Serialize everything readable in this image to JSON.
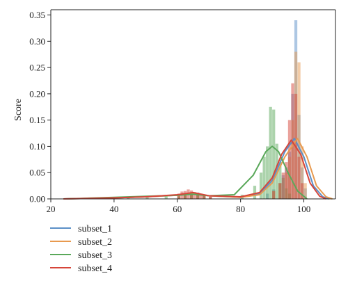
{
  "chart_data": {
    "type": "histogram with density curves",
    "title": "",
    "xlabel": "",
    "ylabel": "Score",
    "xlim": [
      20,
      110
    ],
    "ylim": [
      0,
      0.36
    ],
    "xticks": [
      20,
      40,
      60,
      80,
      100
    ],
    "yticks": [
      0.0,
      0.05,
      0.1,
      0.15,
      0.2,
      0.25,
      0.3,
      0.35
    ],
    "ytick_labels": [
      "0.00",
      "0.05",
      "0.10",
      "0.15",
      "0.20",
      "0.25",
      "0.30",
      "0.35"
    ],
    "grid": false,
    "legend_placement": "below-left",
    "bin_width": 1,
    "series": [
      {
        "name": "subset_1",
        "color": "#5b8fc7",
        "histogram": [
          [
            60,
            0.004
          ],
          [
            62,
            0.006
          ],
          [
            64,
            0.008
          ],
          [
            66,
            0.012
          ],
          [
            68,
            0.006
          ],
          [
            70,
            0.004
          ],
          [
            88,
            0.01
          ],
          [
            90,
            0.018
          ],
          [
            92,
            0.03
          ],
          [
            93,
            0.045
          ],
          [
            94,
            0.06
          ],
          [
            95,
            0.09
          ],
          [
            96,
            0.2
          ],
          [
            97,
            0.34
          ],
          [
            98,
            0.16
          ],
          [
            99,
            0.06
          ],
          [
            100,
            0.02
          ]
        ],
        "density": [
          [
            24,
            0.0
          ],
          [
            40,
            0.002
          ],
          [
            50,
            0.004
          ],
          [
            60,
            0.007
          ],
          [
            65,
            0.01
          ],
          [
            70,
            0.006
          ],
          [
            80,
            0.003
          ],
          [
            86,
            0.01
          ],
          [
            90,
            0.035
          ],
          [
            94,
            0.09
          ],
          [
            97,
            0.115
          ],
          [
            100,
            0.08
          ],
          [
            103,
            0.025
          ],
          [
            106,
            0.004
          ],
          [
            108,
            0.0
          ]
        ]
      },
      {
        "name": "subset_2",
        "color": "#e89a4f",
        "histogram": [
          [
            60,
            0.005
          ],
          [
            62,
            0.008
          ],
          [
            64,
            0.012
          ],
          [
            66,
            0.01
          ],
          [
            68,
            0.006
          ],
          [
            70,
            0.004
          ],
          [
            90,
            0.015
          ],
          [
            92,
            0.03
          ],
          [
            94,
            0.05
          ],
          [
            95,
            0.08
          ],
          [
            96,
            0.15
          ],
          [
            97,
            0.28
          ],
          [
            98,
            0.26
          ],
          [
            99,
            0.1
          ],
          [
            100,
            0.03
          ]
        ],
        "density": [
          [
            24,
            0.0
          ],
          [
            40,
            0.002
          ],
          [
            50,
            0.004
          ],
          [
            60,
            0.007
          ],
          [
            65,
            0.01
          ],
          [
            70,
            0.006
          ],
          [
            80,
            0.003
          ],
          [
            86,
            0.008
          ],
          [
            90,
            0.03
          ],
          [
            94,
            0.08
          ],
          [
            98,
            0.115
          ],
          [
            101,
            0.08
          ],
          [
            104,
            0.025
          ],
          [
            107,
            0.004
          ],
          [
            109,
            0.0
          ]
        ]
      },
      {
        "name": "subset_3",
        "color": "#5aa85a",
        "histogram": [
          [
            44,
            0.002
          ],
          [
            50,
            0.004
          ],
          [
            56,
            0.006
          ],
          [
            60,
            0.008
          ],
          [
            62,
            0.01
          ],
          [
            64,
            0.008
          ],
          [
            66,
            0.01
          ],
          [
            68,
            0.006
          ],
          [
            80,
            0.008
          ],
          [
            84,
            0.025
          ],
          [
            86,
            0.05
          ],
          [
            87,
            0.08
          ],
          [
            88,
            0.1
          ],
          [
            89,
            0.175
          ],
          [
            90,
            0.17
          ],
          [
            91,
            0.105
          ],
          [
            92,
            0.07
          ],
          [
            93,
            0.04
          ],
          [
            94,
            0.02
          ],
          [
            95,
            0.01
          ]
        ],
        "density": [
          [
            24,
            0.0
          ],
          [
            30,
            0.001
          ],
          [
            40,
            0.003
          ],
          [
            50,
            0.005
          ],
          [
            60,
            0.007
          ],
          [
            65,
            0.009
          ],
          [
            70,
            0.006
          ],
          [
            78,
            0.008
          ],
          [
            84,
            0.045
          ],
          [
            88,
            0.09
          ],
          [
            90,
            0.1
          ],
          [
            92,
            0.09
          ],
          [
            95,
            0.05
          ],
          [
            98,
            0.015
          ],
          [
            101,
            0.0
          ]
        ]
      },
      {
        "name": "subset_4",
        "color": "#d6453a",
        "histogram": [
          [
            60,
            0.01
          ],
          [
            61,
            0.014
          ],
          [
            62,
            0.015
          ],
          [
            63,
            0.018
          ],
          [
            64,
            0.016
          ],
          [
            65,
            0.013
          ],
          [
            66,
            0.012
          ],
          [
            67,
            0.01
          ],
          [
            68,
            0.008
          ],
          [
            70,
            0.005
          ],
          [
            90,
            0.015
          ],
          [
            92,
            0.03
          ],
          [
            93,
            0.05
          ],
          [
            94,
            0.07
          ],
          [
            95,
            0.15
          ],
          [
            96,
            0.22
          ],
          [
            97,
            0.2
          ],
          [
            98,
            0.08
          ],
          [
            99,
            0.03
          ]
        ],
        "density": [
          [
            24,
            0.0
          ],
          [
            40,
            0.002
          ],
          [
            50,
            0.004
          ],
          [
            60,
            0.008
          ],
          [
            65,
            0.012
          ],
          [
            70,
            0.006
          ],
          [
            80,
            0.004
          ],
          [
            86,
            0.012
          ],
          [
            90,
            0.04
          ],
          [
            93,
            0.085
          ],
          [
            96,
            0.112
          ],
          [
            99,
            0.085
          ],
          [
            102,
            0.03
          ],
          [
            105,
            0.005
          ],
          [
            107,
            0.0
          ]
        ]
      }
    ]
  }
}
